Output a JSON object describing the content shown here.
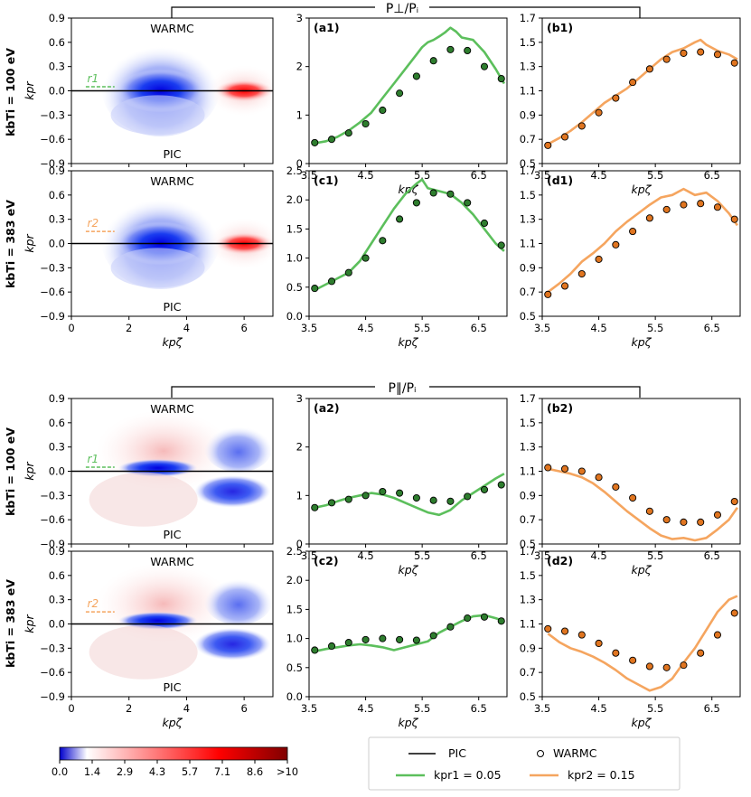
{
  "header_top": "P⊥/Pᵢ",
  "header_bottom": "P∥/Pᵢ",
  "row_labels": [
    "kbTi = 100 eV",
    "kbTi = 383 eV",
    "kbTi = 100 eV",
    "kbTi = 383 eV"
  ],
  "heatmap": {
    "top_label": "WARMC",
    "bottom_label": "PIC",
    "xlabel": "kpζ",
    "ylabel": "kpr",
    "xticks": [
      "0",
      "2",
      "4",
      "6"
    ],
    "xlim": [
      0,
      7
    ],
    "ylim": [
      -0.9,
      0.9
    ],
    "yticks": [
      "0.9",
      "0.6",
      "0.3",
      "0.0",
      "−0.3",
      "−0.6",
      "−0.9"
    ],
    "r_markers": [
      "r1",
      "r2",
      "r1",
      "r2"
    ],
    "r_values": [
      0.05,
      0.15,
      0.05,
      0.15
    ]
  },
  "colorbar": {
    "ticks": [
      "0.0",
      "1.4",
      "2.9",
      "4.3",
      "5.7",
      "7.1",
      "8.6",
      ">10"
    ],
    "colors": [
      "#0000cc",
      "#ffffff",
      "#ff0000",
      "#800000"
    ]
  },
  "legend": {
    "pic_label": "PIC",
    "warmc_label": "WARMC",
    "r1_label": "kpr1 = 0.05",
    "r2_label": "kpr2 = 0.15",
    "green": "#5cbf5c",
    "orange": "#f5a55f"
  },
  "chart_data": [
    {
      "id": "a1",
      "type": "line",
      "title": "(a1)",
      "xlabel": "kpζ",
      "xlim": [
        3.5,
        7.0
      ],
      "ylim": [
        0,
        3
      ],
      "xticks": [
        "3.5",
        "4.5",
        "5.5",
        "6.5"
      ],
      "yticks": [
        "0",
        "1",
        "2",
        "3"
      ],
      "line_x": [
        3.6,
        3.8,
        4.0,
        4.2,
        4.4,
        4.6,
        4.8,
        5.0,
        5.2,
        5.4,
        5.5,
        5.6,
        5.7,
        5.8,
        5.9,
        6.0,
        6.1,
        6.2,
        6.4,
        6.6,
        6.8,
        6.95
      ],
      "line_y": [
        0.42,
        0.46,
        0.55,
        0.68,
        0.85,
        1.05,
        1.35,
        1.65,
        1.95,
        2.25,
        2.4,
        2.5,
        2.55,
        2.62,
        2.7,
        2.8,
        2.72,
        2.6,
        2.55,
        2.3,
        1.95,
        1.65
      ],
      "points_x": [
        3.6,
        3.9,
        4.2,
        4.5,
        4.8,
        5.1,
        5.4,
        5.7,
        6.0,
        6.3,
        6.6,
        6.9
      ],
      "points_y": [
        0.43,
        0.5,
        0.63,
        0.82,
        1.1,
        1.45,
        1.8,
        2.12,
        2.35,
        2.33,
        2.0,
        1.75
      ],
      "color": "#5cbf5c",
      "point_color": "#2e7d2e"
    },
    {
      "id": "b1",
      "type": "line",
      "title": "(b1)",
      "xlabel": "kpζ",
      "xlim": [
        3.5,
        7.0
      ],
      "ylim": [
        0.5,
        1.7
      ],
      "xticks": [
        "3.5",
        "4.5",
        "5.5",
        "6.5"
      ],
      "yticks": [
        "0.5",
        "0.7",
        "0.9",
        "1.1",
        "1.3",
        "1.5",
        "1.7"
      ],
      "line_x": [
        3.6,
        3.8,
        4.0,
        4.2,
        4.4,
        4.6,
        4.8,
        5.0,
        5.2,
        5.4,
        5.6,
        5.8,
        6.0,
        6.2,
        6.3,
        6.4,
        6.6,
        6.8,
        6.95
      ],
      "line_y": [
        0.66,
        0.71,
        0.77,
        0.84,
        0.92,
        1.0,
        1.06,
        1.12,
        1.2,
        1.28,
        1.36,
        1.42,
        1.45,
        1.5,
        1.52,
        1.48,
        1.43,
        1.4,
        1.36
      ],
      "points_x": [
        3.6,
        3.9,
        4.2,
        4.5,
        4.8,
        5.1,
        5.4,
        5.7,
        6.0,
        6.3,
        6.6,
        6.9
      ],
      "points_y": [
        0.65,
        0.72,
        0.81,
        0.92,
        1.04,
        1.17,
        1.28,
        1.36,
        1.41,
        1.42,
        1.4,
        1.33
      ],
      "color": "#f5a55f",
      "point_color": "#e07520"
    },
    {
      "id": "c1",
      "type": "line",
      "title": "(c1)",
      "xlabel": "kpζ",
      "xlim": [
        3.5,
        7.0
      ],
      "ylim": [
        0,
        2.5
      ],
      "xticks": [
        "3.5",
        "4.5",
        "5.5",
        "6.5"
      ],
      "yticks": [
        "0.0",
        "0.5",
        "1.0",
        "1.5",
        "2.0",
        "2.5"
      ],
      "line_x": [
        3.6,
        3.8,
        4.0,
        4.2,
        4.4,
        4.6,
        4.8,
        5.0,
        5.2,
        5.4,
        5.5,
        5.6,
        5.8,
        6.0,
        6.2,
        6.4,
        6.6,
        6.8,
        6.95
      ],
      "line_y": [
        0.45,
        0.55,
        0.65,
        0.75,
        0.95,
        1.25,
        1.55,
        1.85,
        2.1,
        2.28,
        2.35,
        2.2,
        2.15,
        2.1,
        1.95,
        1.75,
        1.5,
        1.25,
        1.12
      ],
      "points_x": [
        3.6,
        3.9,
        4.2,
        4.5,
        4.8,
        5.1,
        5.4,
        5.7,
        6.0,
        6.3,
        6.6,
        6.9
      ],
      "points_y": [
        0.48,
        0.6,
        0.75,
        1.0,
        1.3,
        1.67,
        1.95,
        2.12,
        2.1,
        1.95,
        1.6,
        1.22
      ],
      "color": "#5cbf5c",
      "point_color": "#2e7d2e"
    },
    {
      "id": "d1",
      "type": "line",
      "title": "(d1)",
      "xlabel": "kpζ",
      "xlim": [
        3.5,
        7.0
      ],
      "ylim": [
        0.5,
        1.7
      ],
      "xticks": [
        "3.5",
        "4.5",
        "5.5",
        "6.5"
      ],
      "yticks": [
        "0.5",
        "0.7",
        "0.9",
        "1.1",
        "1.3",
        "1.5",
        "1.7"
      ],
      "line_x": [
        3.6,
        3.8,
        4.0,
        4.2,
        4.4,
        4.6,
        4.8,
        5.0,
        5.2,
        5.4,
        5.6,
        5.8,
        6.0,
        6.2,
        6.4,
        6.6,
        6.8,
        6.95
      ],
      "line_y": [
        0.7,
        0.77,
        0.85,
        0.95,
        1.02,
        1.1,
        1.2,
        1.28,
        1.35,
        1.42,
        1.48,
        1.5,
        1.55,
        1.5,
        1.52,
        1.45,
        1.35,
        1.25
      ],
      "points_x": [
        3.6,
        3.9,
        4.2,
        4.5,
        4.8,
        5.1,
        5.4,
        5.7,
        6.0,
        6.3,
        6.6,
        6.9
      ],
      "points_y": [
        0.68,
        0.75,
        0.85,
        0.97,
        1.09,
        1.2,
        1.31,
        1.38,
        1.42,
        1.43,
        1.4,
        1.3
      ],
      "color": "#f5a55f",
      "point_color": "#e07520"
    },
    {
      "id": "a2",
      "type": "line",
      "title": "(a2)",
      "xlabel": "kpζ",
      "xlim": [
        3.5,
        7.0
      ],
      "ylim": [
        0,
        3
      ],
      "xticks": [
        "3.5",
        "4.5",
        "5.5",
        "6.5"
      ],
      "yticks": [
        "0",
        "1",
        "2",
        "3"
      ],
      "line_x": [
        3.6,
        3.8,
        4.0,
        4.2,
        4.4,
        4.6,
        4.8,
        5.0,
        5.2,
        5.4,
        5.6,
        5.8,
        6.0,
        6.2,
        6.4,
        6.6,
        6.8,
        6.95
      ],
      "line_y": [
        0.75,
        0.8,
        0.88,
        0.95,
        1.0,
        1.05,
        1.02,
        0.95,
        0.85,
        0.75,
        0.65,
        0.6,
        0.7,
        0.9,
        1.05,
        1.2,
        1.35,
        1.45
      ],
      "points_x": [
        3.6,
        3.9,
        4.2,
        4.5,
        4.8,
        5.1,
        5.4,
        5.7,
        6.0,
        6.3,
        6.6,
        6.9
      ],
      "points_y": [
        0.75,
        0.85,
        0.92,
        1.0,
        1.08,
        1.05,
        0.95,
        0.9,
        0.88,
        0.98,
        1.12,
        1.22
      ],
      "color": "#5cbf5c",
      "point_color": "#2e7d2e"
    },
    {
      "id": "b2",
      "type": "line",
      "title": "(b2)",
      "xlabel": "kpζ",
      "xlim": [
        3.5,
        7.0
      ],
      "ylim": [
        0.5,
        1.7
      ],
      "xticks": [
        "3.5",
        "4.5",
        "5.5",
        "6.5"
      ],
      "yticks": [
        "0.5",
        "0.7",
        "0.9",
        "1.1",
        "1.3",
        "1.5",
        "1.7"
      ],
      "line_x": [
        3.6,
        3.8,
        4.0,
        4.2,
        4.4,
        4.6,
        4.8,
        5.0,
        5.2,
        5.4,
        5.6,
        5.8,
        6.0,
        6.2,
        6.4,
        6.6,
        6.8,
        6.95
      ],
      "line_y": [
        1.12,
        1.1,
        1.08,
        1.05,
        1.0,
        0.93,
        0.85,
        0.77,
        0.7,
        0.63,
        0.57,
        0.54,
        0.55,
        0.53,
        0.55,
        0.62,
        0.7,
        0.8
      ],
      "points_x": [
        3.6,
        3.9,
        4.2,
        4.5,
        4.8,
        5.1,
        5.4,
        5.7,
        6.0,
        6.3,
        6.6,
        6.9
      ],
      "points_y": [
        1.13,
        1.12,
        1.1,
        1.05,
        0.97,
        0.88,
        0.77,
        0.7,
        0.68,
        0.68,
        0.74,
        0.85
      ],
      "color": "#f5a55f",
      "point_color": "#e07520"
    },
    {
      "id": "c2",
      "type": "line",
      "title": "(c2)",
      "xlabel": "kpζ",
      "xlim": [
        3.5,
        7.0
      ],
      "ylim": [
        0,
        2.5
      ],
      "xticks": [
        "3.5",
        "4.5",
        "5.5",
        "6.5"
      ],
      "yticks": [
        "0.0",
        "0.5",
        "1.0",
        "1.5",
        "2.0",
        "2.5"
      ],
      "line_x": [
        3.6,
        3.8,
        4.0,
        4.2,
        4.4,
        4.6,
        4.8,
        5.0,
        5.2,
        5.4,
        5.6,
        5.8,
        6.0,
        6.2,
        6.4,
        6.6,
        6.8,
        6.95
      ],
      "line_y": [
        0.78,
        0.82,
        0.85,
        0.88,
        0.9,
        0.88,
        0.85,
        0.8,
        0.85,
        0.9,
        0.95,
        1.1,
        1.2,
        1.3,
        1.38,
        1.4,
        1.35,
        1.3
      ],
      "points_x": [
        3.6,
        3.9,
        4.2,
        4.5,
        4.8,
        5.1,
        5.4,
        5.7,
        6.0,
        6.3,
        6.6,
        6.9
      ],
      "points_y": [
        0.8,
        0.87,
        0.93,
        0.98,
        1.0,
        0.98,
        0.97,
        1.05,
        1.2,
        1.35,
        1.37,
        1.3
      ],
      "color": "#5cbf5c",
      "point_color": "#2e7d2e"
    },
    {
      "id": "d2",
      "type": "line",
      "title": "(d2)",
      "xlabel": "kpζ",
      "xlim": [
        3.5,
        7.0
      ],
      "ylim": [
        0.5,
        1.7
      ],
      "xticks": [
        "3.5",
        "4.5",
        "5.5",
        "6.5"
      ],
      "yticks": [
        "0.5",
        "0.7",
        "0.9",
        "1.1",
        "1.3",
        "1.5",
        "1.7"
      ],
      "line_x": [
        3.6,
        3.8,
        4.0,
        4.2,
        4.4,
        4.6,
        4.8,
        5.0,
        5.2,
        5.4,
        5.6,
        5.8,
        6.0,
        6.2,
        6.4,
        6.6,
        6.8,
        6.95
      ],
      "line_y": [
        1.02,
        0.95,
        0.9,
        0.87,
        0.83,
        0.78,
        0.72,
        0.65,
        0.6,
        0.55,
        0.58,
        0.65,
        0.78,
        0.9,
        1.05,
        1.2,
        1.3,
        1.33
      ],
      "points_x": [
        3.6,
        3.9,
        4.2,
        4.5,
        4.8,
        5.1,
        5.4,
        5.7,
        6.0,
        6.3,
        6.6,
        6.9
      ],
      "points_y": [
        1.06,
        1.04,
        1.01,
        0.94,
        0.86,
        0.8,
        0.75,
        0.74,
        0.76,
        0.86,
        1.01,
        1.19
      ],
      "color": "#f5a55f",
      "point_color": "#e07520"
    }
  ]
}
